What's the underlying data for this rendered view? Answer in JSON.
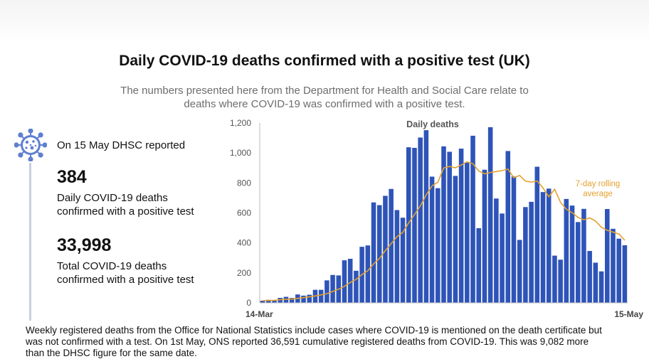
{
  "header": {
    "title": "Daily COVID-19 deaths confirmed with a positive test (UK)",
    "subtitle_line1": "The numbers presented here from the Department for Health and Social Care relate to",
    "subtitle_line2": "deaths where COVID-19 was confirmed with a positive test."
  },
  "sidebar": {
    "icon": "virus-icon",
    "reported": "On 15 May DHSC reported",
    "daily_value": "384",
    "daily_label_1": "Daily COVID-19 deaths",
    "daily_label_2": "confirmed with a positive test",
    "total_value": "33,998",
    "total_label_1": "Total COVID-19 deaths",
    "total_label_2": "confirmed with a positive test"
  },
  "footer": {
    "line1": "Weekly registered deaths from the Office for National Statistics include cases where COVID-19 is mentioned on the death certificate but",
    "line2": "was not confirmed with a test. On 1st May, ONS reported 36,591 cumulative registered deaths from COVID-19. This was 9,082 more",
    "line3": "than the DHSC figure for the same date."
  },
  "colors": {
    "bar": "#2e54b8",
    "average_line": "#e3a12f",
    "axis_text": "#555555",
    "icon": "#5f7fd0"
  },
  "chart_data": {
    "type": "bar",
    "title": "",
    "series_label": "Daily deaths",
    "average_label_1": "7-day rolling",
    "average_label_2": "average",
    "x_start_label": "14-Mar",
    "x_end_label": "15-May",
    "ylim": [
      0,
      1200
    ],
    "yticks": [
      "0",
      "200",
      "400",
      "600",
      "800",
      "1,000",
      "1,200"
    ],
    "ytick_values": [
      0,
      200,
      400,
      600,
      800,
      1000,
      1200
    ],
    "grid": false,
    "series": [
      {
        "name": "Daily deaths",
        "values": [
          14,
          20,
          16,
          33,
          40,
          33,
          56,
          48,
          54,
          87,
          87,
          150,
          186,
          183,
          284,
          294,
          214,
          374,
          383,
          670,
          652,
          714,
          760,
          619,
          568,
          1038,
          1034,
          1103,
          1152,
          842,
          765,
          1044,
          1008,
          847,
          1029,
          935,
          1115,
          498,
          888,
          1172,
          696,
          596,
          1013,
          843,
          420,
          639,
          674,
          908,
          739,
          762,
          315,
          288,
          693,
          649,
          539,
          627,
          346,
          268,
          210,
          626,
          494,
          428,
          384
        ]
      },
      {
        "name": "7-day rolling average",
        "values": [
          14,
          16,
          16,
          21,
          24,
          25,
          30,
          35,
          40,
          46,
          53,
          61,
          76,
          91,
          110,
          136,
          156,
          189,
          214,
          260,
          296,
          348,
          394,
          441,
          470,
          534,
          589,
          647,
          720,
          780,
          805,
          900,
          910,
          901,
          919,
          941,
          928,
          880,
          861,
          870,
          876,
          882,
          892,
          835,
          850,
          812,
          806,
          813,
          767,
          708,
          758,
          671,
          625,
          602,
          570,
          554,
          567,
          546,
          504,
          484,
          472,
          459,
          418
        ]
      }
    ]
  }
}
